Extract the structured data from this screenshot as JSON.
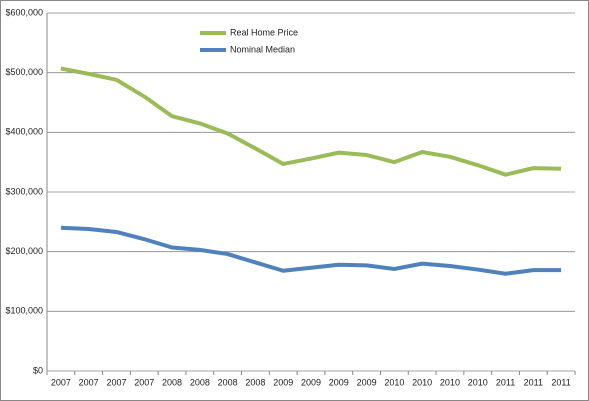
{
  "chart_data": {
    "type": "line",
    "categories": [
      "2007",
      "2007",
      "2007",
      "2007",
      "2008",
      "2008",
      "2008",
      "2008",
      "2009",
      "2009",
      "2009",
      "2009",
      "2010",
      "2010",
      "2010",
      "2010",
      "2011",
      "2011",
      "2011"
    ],
    "series": [
      {
        "name": "Real Home Price",
        "color": "#9bbb59",
        "values": [
          507000,
          498000,
          488000,
          460000,
          427000,
          415000,
          398000,
          373000,
          347000,
          356000,
          366000,
          362000,
          350000,
          367000,
          359000,
          345000,
          329000,
          340000,
          339000
        ]
      },
      {
        "name": "Nominal Median",
        "color": "#4f81bd",
        "values": [
          240000,
          238000,
          233000,
          221000,
          207000,
          203000,
          196000,
          182000,
          168000,
          173000,
          178000,
          177000,
          171000,
          180000,
          176000,
          170000,
          163000,
          169000,
          169000
        ]
      }
    ],
    "ylim": [
      0,
      600000
    ],
    "yticks": [
      {
        "value": 0,
        "label": "$0"
      },
      {
        "value": 100000,
        "label": "$100,000"
      },
      {
        "value": 200000,
        "label": "$200,000"
      },
      {
        "value": 300000,
        "label": "$300,000"
      },
      {
        "value": 400000,
        "label": "$400,000"
      },
      {
        "value": 500000,
        "label": "$500,000"
      },
      {
        "value": 600000,
        "label": "$600,000"
      }
    ],
    "grid": true,
    "legend": "top-left"
  }
}
